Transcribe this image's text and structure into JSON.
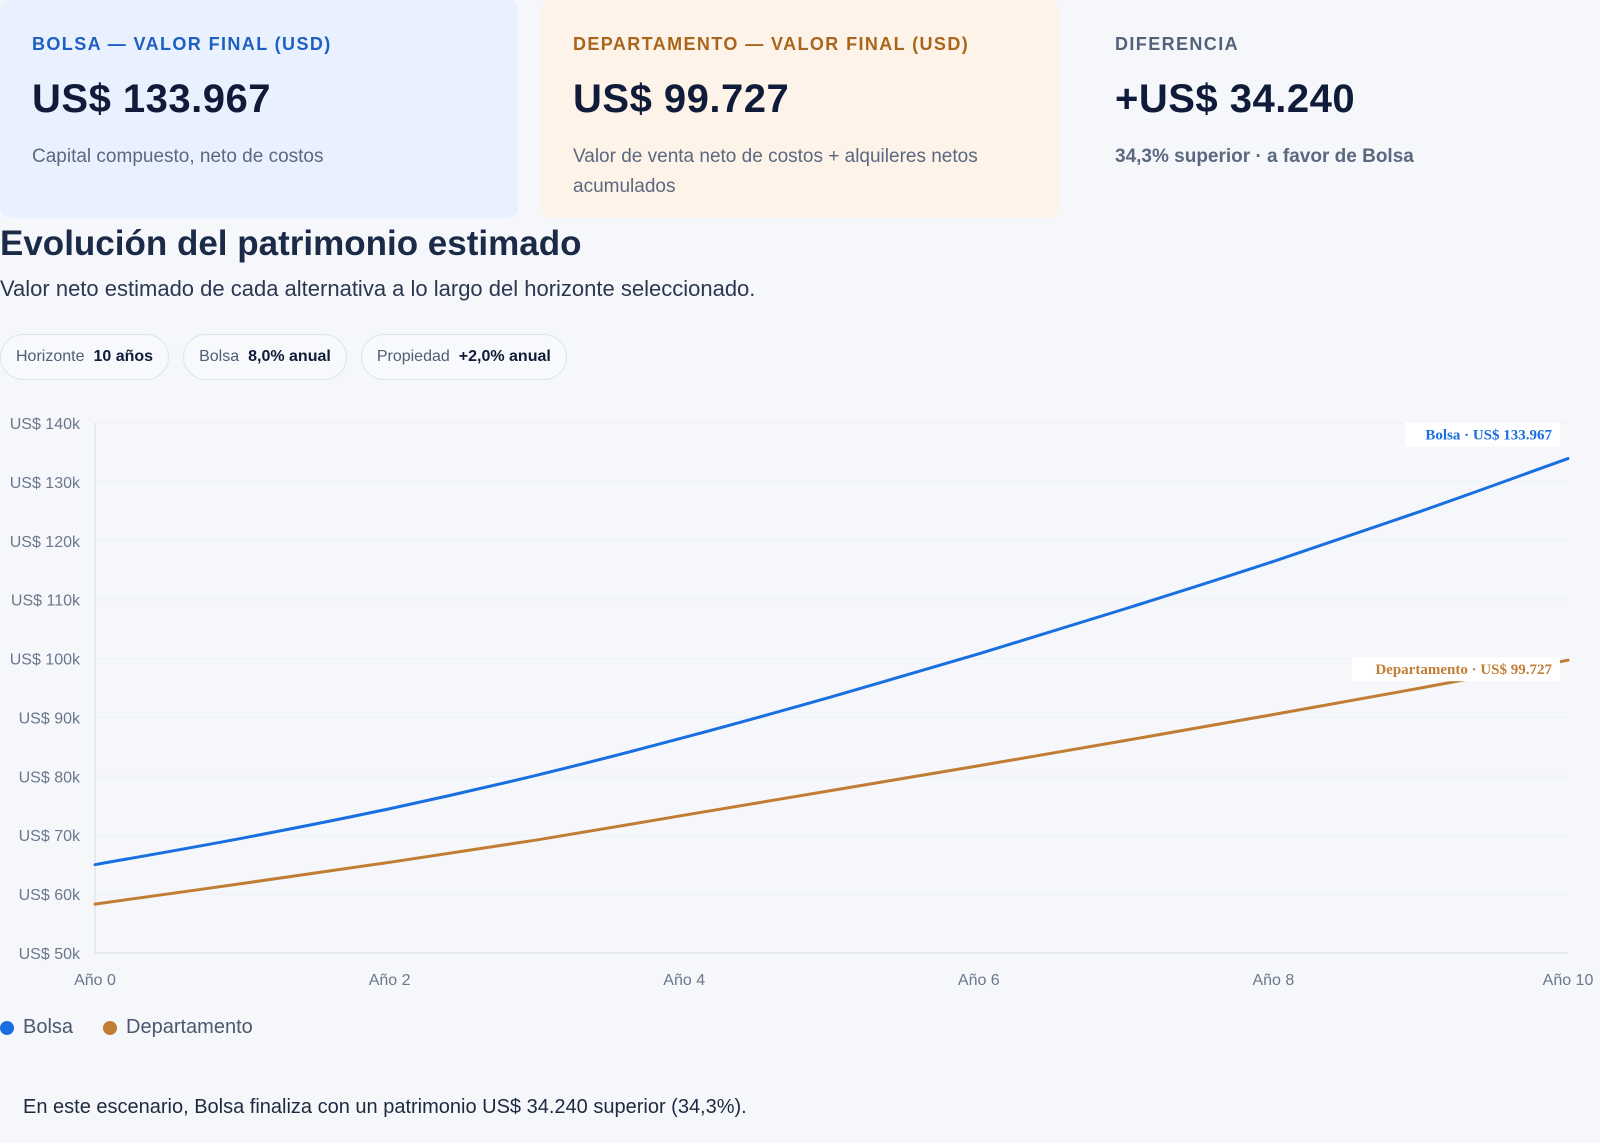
{
  "cards": {
    "bolsa": {
      "label": "BOLSA — VALOR FINAL (USD)",
      "value": "US$ 133.967",
      "sub": "Capital compuesto, neto de costos"
    },
    "departamento": {
      "label": "DEPARTAMENTO — VALOR FINAL (USD)",
      "value": "US$ 99.727",
      "sub": "Valor de venta neto de costos + alquileres netos acumulados"
    },
    "diferencia": {
      "label": "DIFERENCIA",
      "value": "+US$ 34.240",
      "sub": "34,3% superior · a favor de Bolsa"
    }
  },
  "section": {
    "title": "Evolución del patrimonio estimado",
    "subtitle": "Valor neto estimado de cada alternativa a lo largo del horizonte seleccionado."
  },
  "pills": [
    {
      "label": "Horizonte",
      "value": "10 años"
    },
    {
      "label": "Bolsa",
      "value": "8,0% anual"
    },
    {
      "label": "Propiedad",
      "value": "+2,0% anual"
    }
  ],
  "colors": {
    "bolsa": "#1a6fe0",
    "departamento": "#c27d35",
    "grid": "#eef1f6",
    "axis": "#d6dbe4"
  },
  "chart_data": {
    "type": "line",
    "x": [
      0,
      1,
      2,
      3,
      4,
      5,
      6,
      7,
      8,
      9,
      10
    ],
    "x_ticks": [
      0,
      2,
      4,
      6,
      8,
      10
    ],
    "x_tick_labels": [
      "Año 0",
      "Año 2",
      "Año 4",
      "Año 6",
      "Año 8",
      "Año 10"
    ],
    "ylim": [
      50000,
      140000
    ],
    "y_ticks": [
      50000,
      60000,
      70000,
      80000,
      90000,
      100000,
      110000,
      120000,
      130000,
      140000
    ],
    "y_tick_labels": [
      "US$ 50k",
      "US$ 60k",
      "US$ 70k",
      "US$ 80k",
      "US$ 90k",
      "US$ 100k",
      "US$ 110k",
      "US$ 120k",
      "US$ 130k",
      "US$ 140k"
    ],
    "grid": true,
    "legend_position": "bottom-left",
    "series": [
      {
        "name": "Bolsa",
        "color": "#1a6fe0",
        "end_label": "Bolsa · US$ 133.967",
        "values": [
          65000,
          69500,
          74500,
          80200,
          86600,
          93500,
          100800,
          108500,
          116500,
          125000,
          133967
        ]
      },
      {
        "name": "Departamento",
        "color": "#c27d35",
        "end_label": "Departamento · US$ 99.727",
        "values": [
          58300,
          61800,
          65400,
          69200,
          73400,
          77600,
          81800,
          86100,
          90500,
          95000,
          99727
        ]
      }
    ]
  },
  "footnote": "En este escenario, Bolsa finaliza con un patrimonio US$ 34.240 superior (34,3%)."
}
